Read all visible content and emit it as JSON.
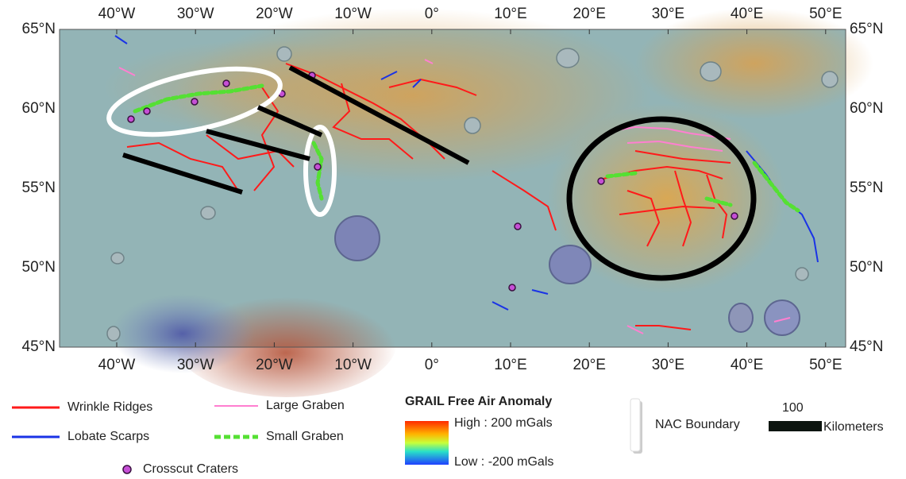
{
  "map": {
    "lon_labels": [
      "40°W",
      "30°W",
      "20°W",
      "10°W",
      "0°",
      "10°E",
      "20°E",
      "30°E",
      "40°E",
      "50°E"
    ],
    "lat_labels": [
      "65°N",
      "60°N",
      "55°N",
      "50°N",
      "45°N"
    ],
    "legend_items": [
      "Wrinkle Ridges",
      "Large Graben",
      "Lobate Scarps",
      "Small Graben",
      "Crosscut Craters"
    ],
    "colorbar": {
      "title": "GRAIL Free Air Anomaly",
      "high": "High : 200 mGals",
      "low": "Low : -200 mGals"
    },
    "nac_boundary": "NAC Boundary",
    "scale_bar": {
      "length": 100,
      "unit": "Kilometers"
    }
  }
}
